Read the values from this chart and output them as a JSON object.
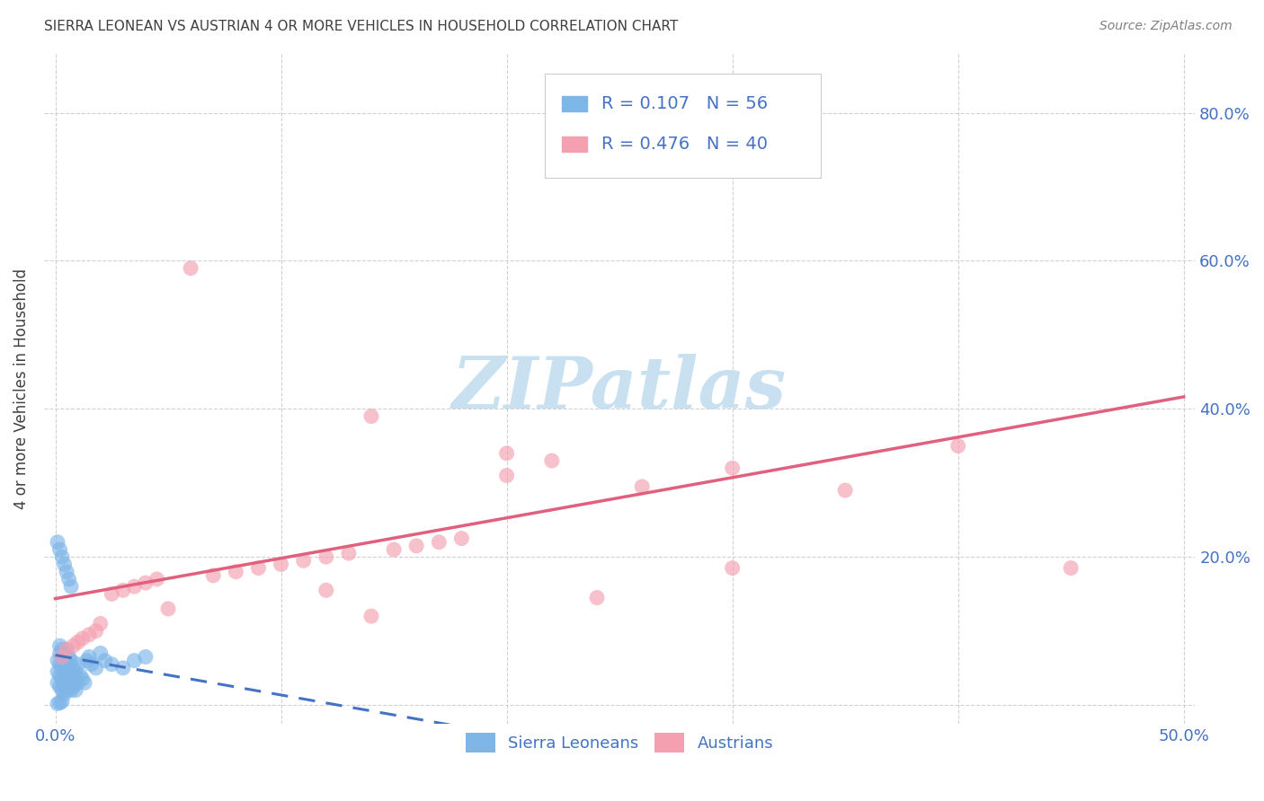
{
  "title": "SIERRA LEONEAN VS AUSTRIAN 4 OR MORE VEHICLES IN HOUSEHOLD CORRELATION CHART",
  "source": "Source: ZipAtlas.com",
  "ylabel": "4 or more Vehicles in Household",
  "xlim": [
    0.0,
    0.5
  ],
  "ylim": [
    -0.02,
    0.88
  ],
  "xticks": [
    0.0,
    0.1,
    0.2,
    0.3,
    0.4,
    0.5
  ],
  "yticks": [
    0.0,
    0.2,
    0.4,
    0.6,
    0.8
  ],
  "xticklabels_show": [
    "0.0%",
    "",
    "",
    "",
    "",
    "50.0%"
  ],
  "yticklabels_right": [
    "",
    "20.0%",
    "40.0%",
    "60.0%",
    "80.0%"
  ],
  "r_sierra": 0.107,
  "n_sierra": 56,
  "r_austrian": 0.476,
  "n_austrian": 40,
  "blue_color": "#7EB6E8",
  "pink_color": "#F4A0B0",
  "blue_line_color": "#4472C4",
  "pink_line_color": "#E0607E",
  "blue_text_color": "#4472C4",
  "title_color": "#404040",
  "source_color": "#808080",
  "watermark_color": "#C8E0F0",
  "grid_color": "#CCCCCC",
  "sierra_x": [
    0.001,
    0.001,
    0.001,
    0.002,
    0.002,
    0.002,
    0.002,
    0.002,
    0.003,
    0.003,
    0.003,
    0.003,
    0.003,
    0.004,
    0.004,
    0.004,
    0.004,
    0.005,
    0.005,
    0.005,
    0.005,
    0.006,
    0.006,
    0.006,
    0.007,
    0.007,
    0.007,
    0.008,
    0.008,
    0.009,
    0.009,
    0.01,
    0.01,
    0.011,
    0.012,
    0.013,
    0.014,
    0.015,
    0.016,
    0.018,
    0.02,
    0.022,
    0.025,
    0.03,
    0.035,
    0.04,
    0.001,
    0.002,
    0.003,
    0.004,
    0.005,
    0.006,
    0.007,
    0.003,
    0.002,
    0.001
  ],
  "sierra_y": [
    0.03,
    0.045,
    0.06,
    0.025,
    0.04,
    0.055,
    0.07,
    0.08,
    0.02,
    0.035,
    0.05,
    0.065,
    0.075,
    0.015,
    0.03,
    0.05,
    0.07,
    0.02,
    0.04,
    0.06,
    0.075,
    0.025,
    0.045,
    0.065,
    0.02,
    0.04,
    0.06,
    0.025,
    0.05,
    0.02,
    0.045,
    0.03,
    0.055,
    0.04,
    0.035,
    0.03,
    0.06,
    0.065,
    0.055,
    0.05,
    0.07,
    0.06,
    0.055,
    0.05,
    0.06,
    0.065,
    0.22,
    0.21,
    0.2,
    0.19,
    0.18,
    0.17,
    0.16,
    0.005,
    0.003,
    0.002
  ],
  "austrian_x": [
    0.003,
    0.005,
    0.008,
    0.01,
    0.012,
    0.015,
    0.018,
    0.02,
    0.025,
    0.03,
    0.035,
    0.04,
    0.045,
    0.05,
    0.06,
    0.07,
    0.08,
    0.09,
    0.1,
    0.11,
    0.12,
    0.13,
    0.14,
    0.15,
    0.16,
    0.17,
    0.18,
    0.2,
    0.22,
    0.24,
    0.26,
    0.12,
    0.2,
    0.3,
    0.35,
    0.4,
    0.45,
    0.24,
    0.14,
    0.3
  ],
  "austrian_y": [
    0.065,
    0.075,
    0.08,
    0.085,
    0.09,
    0.095,
    0.1,
    0.11,
    0.15,
    0.155,
    0.16,
    0.165,
    0.17,
    0.13,
    0.59,
    0.175,
    0.18,
    0.185,
    0.19,
    0.195,
    0.2,
    0.205,
    0.39,
    0.21,
    0.215,
    0.22,
    0.225,
    0.31,
    0.33,
    0.8,
    0.295,
    0.155,
    0.34,
    0.32,
    0.29,
    0.35,
    0.185,
    0.145,
    0.12,
    0.185
  ]
}
